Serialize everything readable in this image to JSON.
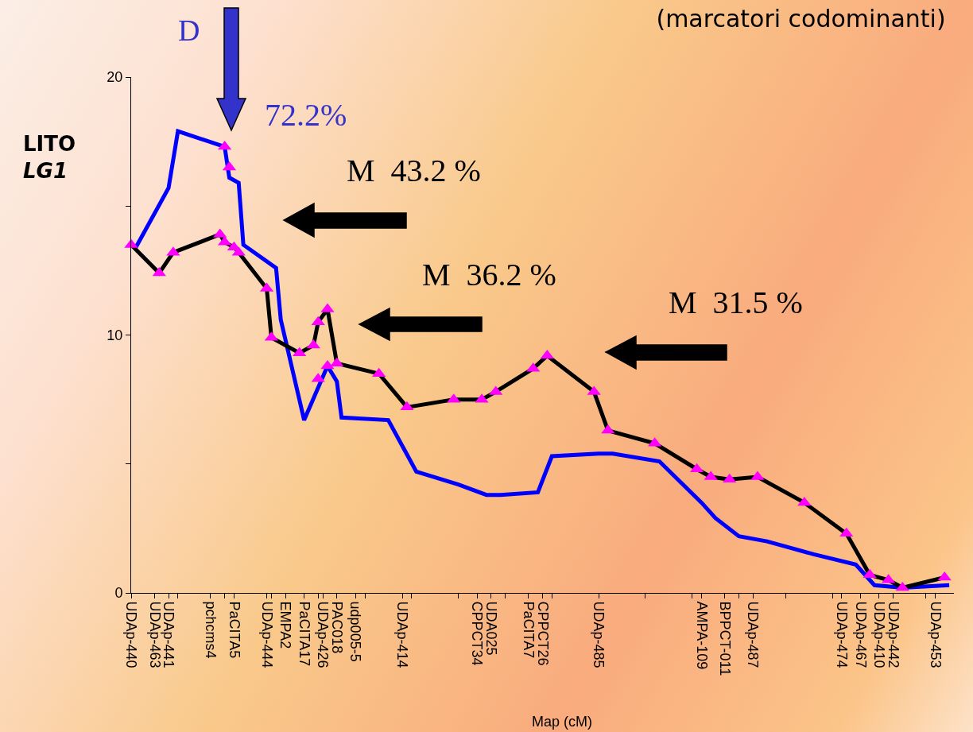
{
  "chart_data": {
    "type": "line",
    "title": "(marcatori codominanti)",
    "xlabel": "Map (cM)",
    "ylabel": "LITO\nLG1",
    "ylim": [
      0,
      20
    ],
    "yticks": [
      0,
      {
        "value": 5,
        "label": null
      },
      10,
      {
        "value": 15,
        "label": null
      },
      20
    ],
    "categories": [
      "UDAp-440",
      null,
      null,
      null,
      null,
      "UDAp-463",
      null,
      null,
      "UDAp-441",
      null,
      null,
      null,
      null,
      null,
      null,
      null,
      null,
      "pchcms4",
      null,
      null,
      null,
      null,
      "PaCITA5",
      null,
      null,
      null,
      null,
      null,
      null,
      "UDAp-444",
      null,
      null,
      null,
      "EMPA2",
      null,
      null,
      null,
      "PaCITA17",
      null,
      null,
      null,
      "UDAp-426",
      null,
      null,
      "PAC018",
      null,
      null,
      null,
      "udp005-5",
      null,
      null,
      null,
      null,
      null,
      null,
      null,
      null,
      null,
      "UDAp-414",
      null,
      null,
      null,
      null,
      null,
      null,
      null,
      null,
      null,
      null,
      null,
      null,
      null,
      null,
      null,
      "CPPCT34",
      null,
      null,
      "UDA025",
      null,
      null,
      null,
      null,
      null,
      null,
      null,
      "PaCITA7",
      null,
      null,
      "CPPCT26",
      null,
      null,
      null,
      null,
      null,
      null,
      null,
      null,
      null,
      null,
      null,
      "UDAp-485",
      null,
      null,
      null,
      null,
      null,
      null,
      null,
      null,
      null,
      null,
      null,
      null,
      null,
      null,
      null,
      null,
      null,
      null,
      null,
      null,
      null,
      "AMPA-109",
      null,
      null,
      null,
      null,
      "BPPCT-011",
      null,
      null,
      null,
      null,
      null,
      "UDAp-487",
      null,
      null,
      null,
      null,
      null,
      null,
      null,
      null,
      null,
      null,
      null,
      null,
      null,
      null,
      null,
      null,
      null,
      null,
      "UDAp-474",
      null,
      null,
      null,
      "UDAp-467",
      null,
      null,
      null,
      "UDAp-410",
      null,
      null,
      "UDAp-442",
      null,
      null,
      null,
      null,
      null,
      null,
      null,
      null,
      "UDAp-453",
      null,
      null,
      null,
      null
    ],
    "grid": false,
    "line_style": "solid",
    "series": [
      {
        "color": "#0000ff",
        "values": [
          null,
          13.4,
          null,
          null,
          null,
          null,
          null,
          null,
          15.7,
          null,
          17.9,
          null,
          null,
          null,
          null,
          null,
          null,
          null,
          null,
          null,
          17.3,
          16.1,
          null,
          15.9,
          13.5,
          null,
          null,
          null,
          null,
          null,
          null,
          12.6,
          10.6,
          null,
          null,
          null,
          null,
          6.7,
          null,
          null,
          null,
          null,
          8.8,
          null,
          8.2,
          6.8,
          null,
          null,
          null,
          null,
          null,
          null,
          null,
          null,
          null,
          6.7,
          null,
          null,
          null,
          null,
          null,
          4.7,
          null,
          null,
          null,
          null,
          null,
          null,
          null,
          null,
          4.2,
          null,
          null,
          null,
          null,
          null,
          3.8,
          null,
          null,
          3.8,
          null,
          null,
          null,
          null,
          null,
          null,
          null,
          3.9,
          null,
          null,
          5.3,
          null,
          null,
          null,
          null,
          null,
          null,
          null,
          null,
          null,
          5.4,
          null,
          null,
          5.4,
          null,
          null,
          null,
          null,
          null,
          null,
          null,
          null,
          null,
          5.1,
          null,
          null,
          null,
          null,
          null,
          null,
          null,
          null,
          3.5,
          null,
          null,
          2.9,
          null,
          null,
          null,
          null,
          2.2,
          null,
          null,
          null,
          null,
          null,
          2.0,
          null,
          null,
          null,
          null,
          null,
          null,
          null,
          null,
          null,
          1.5,
          null,
          null,
          null,
          null,
          null,
          null,
          null,
          null,
          1.1,
          null,
          null,
          null,
          0.3,
          null,
          null,
          null,
          null,
          null,
          0.2,
          null,
          null,
          null,
          null,
          null,
          null,
          null,
          null,
          null,
          0.3,
          null
        ]
      },
      {
        "color": "#000000",
        "values": [
          13.5,
          null,
          null,
          null,
          null,
          null,
          12.4,
          null,
          null,
          13.2,
          null,
          null,
          null,
          null,
          null,
          null,
          null,
          null,
          null,
          13.9,
          13.6,
          null,
          13.4,
          13.2,
          null,
          null,
          null,
          null,
          null,
          11.8,
          9.9,
          null,
          null,
          null,
          null,
          null,
          9.3,
          null,
          null,
          9.6,
          10.5,
          null,
          11.0,
          null,
          8.9,
          null,
          null,
          null,
          null,
          null,
          null,
          null,
          null,
          8.5,
          null,
          null,
          null,
          null,
          null,
          7.2,
          null,
          null,
          null,
          null,
          null,
          null,
          null,
          null,
          null,
          7.5,
          null,
          null,
          null,
          null,
          null,
          7.5,
          null,
          null,
          7.8,
          null,
          null,
          null,
          null,
          null,
          null,
          null,
          8.7,
          null,
          null,
          9.2,
          null,
          null,
          null,
          null,
          null,
          null,
          null,
          null,
          null,
          7.8,
          null,
          null,
          6.3,
          null,
          null,
          null,
          null,
          null,
          null,
          null,
          null,
          null,
          5.8,
          null,
          null,
          null,
          null,
          null,
          null,
          null,
          null,
          4.8,
          null,
          null,
          4.5,
          null,
          null,
          null,
          4.4,
          null,
          null,
          null,
          null,
          null,
          4.5,
          null,
          null,
          null,
          null,
          null,
          null,
          null,
          null,
          null,
          3.5,
          null,
          null,
          null,
          null,
          null,
          null,
          null,
          null,
          2.3,
          null,
          null,
          null,
          null,
          0.7,
          null,
          null,
          null,
          0.5,
          null,
          null,
          0.2,
          null,
          null,
          null,
          null,
          null,
          null,
          null,
          null,
          0.6,
          null,
          null
        ]
      },
      {
        "type": "scatter",
        "color": "#ff00ff",
        "marker": "triangle",
        "values": [
          13.5,
          null,
          null,
          null,
          null,
          null,
          12.4,
          null,
          null,
          13.2,
          null,
          null,
          null,
          null,
          null,
          null,
          null,
          null,
          null,
          13.9,
          13.6,
          null,
          13.4,
          13.2,
          null,
          null,
          null,
          null,
          null,
          11.8,
          9.9,
          null,
          null,
          null,
          null,
          null,
          9.3,
          null,
          null,
          9.6,
          10.5,
          null,
          11.0,
          null,
          8.9,
          null,
          null,
          null,
          null,
          null,
          null,
          null,
          null,
          8.5,
          null,
          null,
          null,
          null,
          null,
          7.2,
          null,
          null,
          null,
          null,
          null,
          null,
          null,
          null,
          null,
          7.5,
          null,
          null,
          null,
          null,
          null,
          7.5,
          null,
          null,
          7.8,
          null,
          null,
          null,
          null,
          null,
          null,
          null,
          8.7,
          null,
          null,
          9.2,
          null,
          null,
          null,
          null,
          null,
          null,
          null,
          null,
          null,
          7.8,
          null,
          null,
          6.3,
          null,
          null,
          null,
          null,
          null,
          null,
          null,
          null,
          null,
          5.8,
          null,
          null,
          null,
          null,
          null,
          null,
          null,
          null,
          4.8,
          null,
          null,
          4.5,
          null,
          null,
          null,
          4.4,
          null,
          null,
          null,
          null,
          null,
          4.5,
          null,
          null,
          null,
          null,
          null,
          null,
          null,
          null,
          null,
          3.5,
          null,
          null,
          null,
          null,
          null,
          null,
          null,
          null,
          2.3,
          null,
          null,
          null,
          null,
          0.7,
          null,
          null,
          null,
          0.5,
          null,
          null,
          0.2,
          null,
          null,
          null,
          null,
          null,
          null,
          null,
          null,
          0.6,
          null,
          null
        ]
      },
      {
        "type": "scatter",
        "color": "#ff00ff",
        "marker": "triangle",
        "values": [
          null,
          null,
          null,
          null,
          null,
          null,
          null,
          null,
          null,
          null,
          null,
          null,
          null,
          null,
          null,
          null,
          null,
          null,
          null,
          null,
          17.3,
          16.5,
          null,
          null,
          null,
          null,
          null,
          null,
          null,
          null,
          null,
          null,
          null,
          null,
          null,
          null,
          null,
          null,
          null,
          null,
          8.3,
          null,
          8.8,
          null,
          null,
          null,
          null,
          null,
          null,
          null,
          null,
          null,
          null,
          null,
          null,
          null,
          null,
          null,
          null,
          null,
          null,
          null,
          null,
          null,
          null,
          null,
          null,
          null,
          null,
          null,
          null,
          null,
          null,
          null,
          null,
          null,
          null,
          null,
          null,
          null,
          null,
          null,
          null,
          null,
          null,
          null,
          null,
          null,
          null,
          null,
          null,
          null,
          null,
          null,
          null,
          null,
          null,
          null,
          null,
          null,
          null,
          null,
          null,
          null,
          null,
          null,
          null,
          null,
          null,
          null,
          null,
          null,
          null,
          null,
          null,
          null,
          null,
          null,
          null,
          null,
          null,
          null,
          null,
          null,
          null,
          null,
          null,
          null,
          null,
          null,
          null,
          null,
          null,
          null,
          null,
          null,
          null,
          null,
          null,
          null,
          null,
          null,
          null,
          null,
          null,
          null,
          null,
          null,
          null,
          null,
          null,
          null,
          null,
          null,
          null,
          null,
          null,
          null,
          null,
          null,
          null,
          null,
          null,
          null,
          null,
          null,
          null,
          null,
          null,
          null,
          null,
          null,
          null,
          null,
          null,
          null,
          null
        ]
      }
    ],
    "annotations": [
      "D",
      "72.2%",
      "M  43.2 %",
      "M  36.2 %",
      "M  31.5 %"
    ]
  }
}
